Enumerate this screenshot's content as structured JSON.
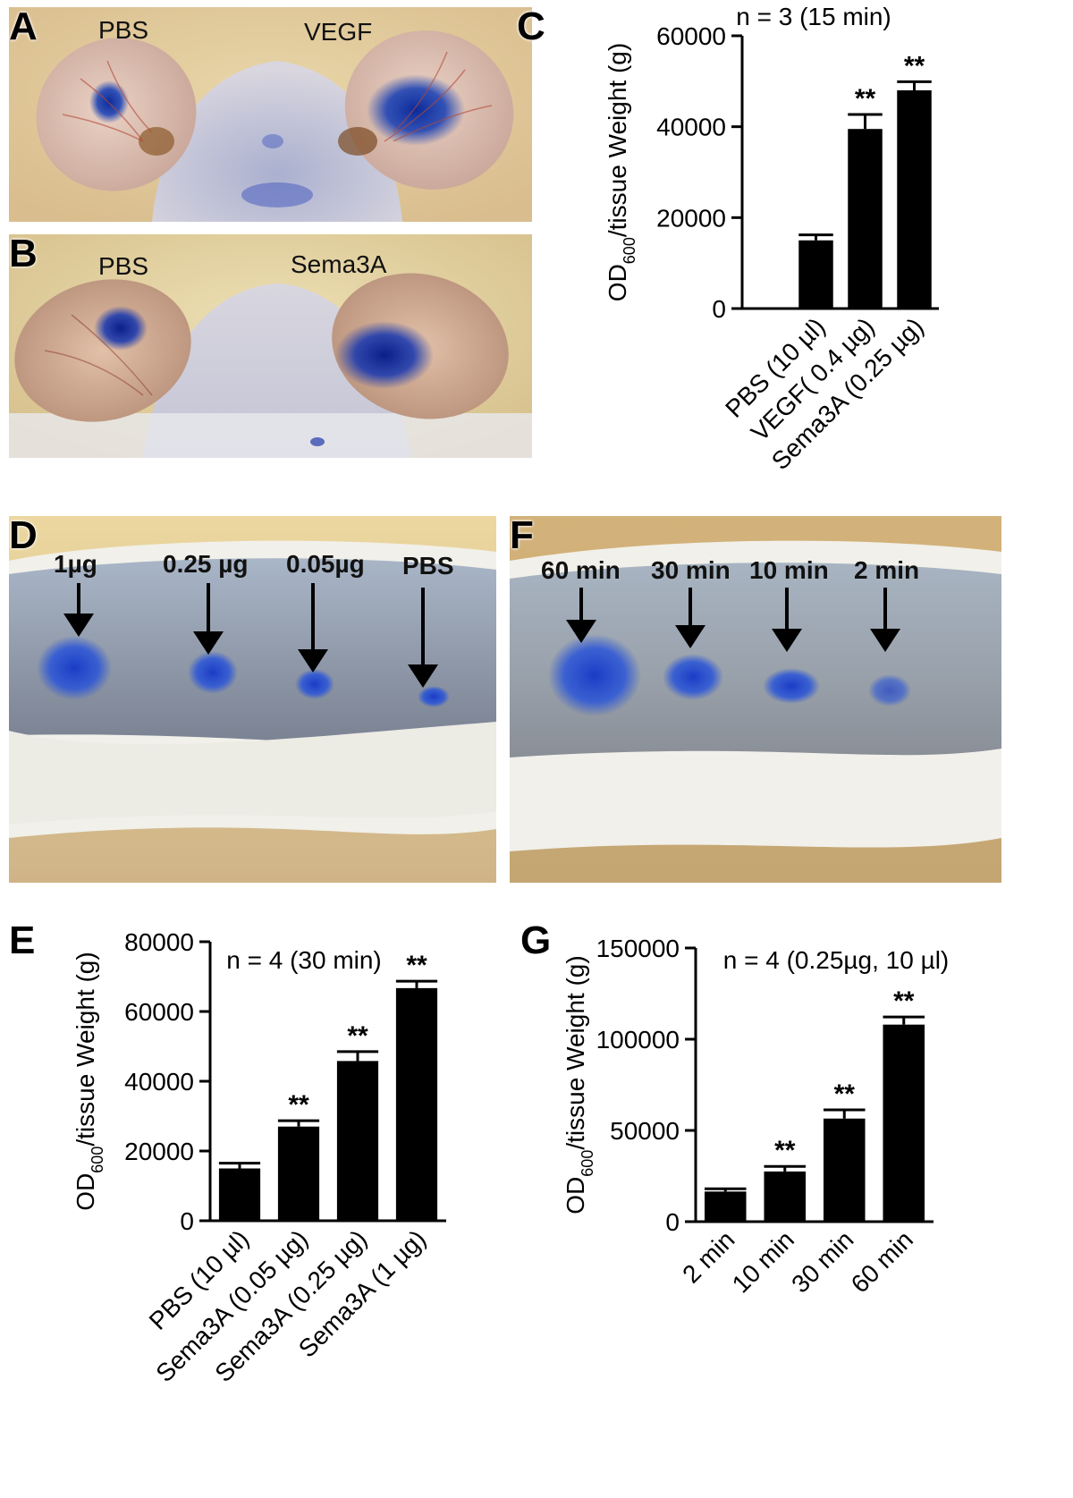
{
  "panels": {
    "A": {
      "letter": "A",
      "labels": [
        "PBS",
        "VEGF"
      ]
    },
    "B": {
      "letter": "B",
      "labels": [
        "PBS",
        "Sema3A"
      ]
    },
    "D": {
      "letter": "D",
      "labels": [
        "1µg",
        "0.25 µg",
        "0.05µg",
        "PBS"
      ]
    },
    "F": {
      "letter": "F",
      "labels": [
        "60 min",
        "30 min",
        "10 min",
        "2 min"
      ]
    }
  },
  "colors": {
    "bar": "#000000",
    "dye": "#1f44b4",
    "skin": "#c9c5cf",
    "background": "#d9bd8e"
  },
  "chart_data": [
    {
      "id": "C",
      "letter": "C",
      "type": "bar",
      "title": "n = 3 (15 min)",
      "ylabel_main": "OD",
      "ylabel_sub": "600",
      "ylabel_rest": "/tissue Weight (g)",
      "ylim": [
        0,
        60000
      ],
      "yticks": [
        0,
        20000,
        40000,
        60000
      ],
      "categories": [
        "PBS (10 µl)",
        "VEGF( 0.4 µg)",
        "Sema3A (0.25 µg)"
      ],
      "values": [
        15000,
        39500,
        48000
      ],
      "errors": [
        1200,
        3200,
        1900
      ],
      "significance": [
        "",
        "**",
        "**"
      ]
    },
    {
      "id": "E",
      "letter": "E",
      "type": "bar",
      "title": "n = 4 (30 min)",
      "ylabel_main": "OD",
      "ylabel_sub": "600",
      "ylabel_rest": "/tissue Weight (g)",
      "ylim": [
        0,
        80000
      ],
      "yticks": [
        0,
        20000,
        40000,
        60000,
        80000
      ],
      "categories": [
        "PBS (10 µl)",
        "Sema3A (0.05 µg)",
        "Sema3A (0.25 µg)",
        "Sema3A (1 µg)"
      ],
      "values": [
        15000,
        27000,
        45800,
        66700
      ],
      "errors": [
        1500,
        1700,
        2700,
        2000
      ],
      "significance": [
        "",
        "**",
        "**",
        "**"
      ]
    },
    {
      "id": "G",
      "letter": "G",
      "type": "bar",
      "title": "n = 4 (0.25µg, 10 µl)",
      "ylabel_main": "OD",
      "ylabel_sub": "600",
      "ylabel_rest": "/tissue Weight (g)",
      "ylim": [
        0,
        150000
      ],
      "yticks": [
        0,
        50000,
        100000,
        150000
      ],
      "categories": [
        "2 min",
        "10 min",
        "30 min",
        "60 min"
      ],
      "values": [
        16500,
        27500,
        56500,
        108000
      ],
      "errors": [
        1500,
        2800,
        4800,
        4200
      ],
      "significance": [
        "",
        "**",
        "**",
        "**"
      ]
    }
  ]
}
